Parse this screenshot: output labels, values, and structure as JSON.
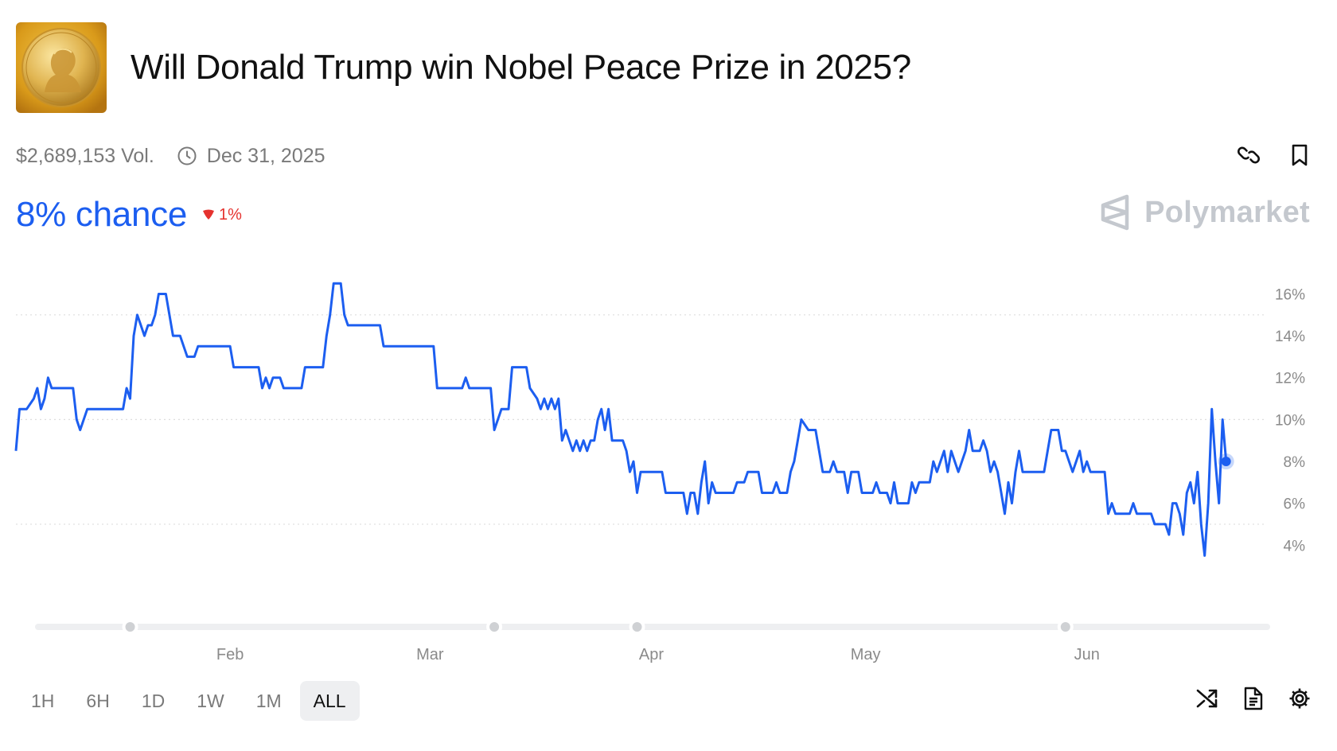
{
  "market": {
    "title": "Will Donald Trump win Nobel Peace Prize in 2025?",
    "image_icon": "nobel-medal-image",
    "volume": "$2,689,153 Vol.",
    "end_date": "Dec 31, 2025",
    "chance": "8% chance",
    "change": "1%",
    "change_direction": "down",
    "brand": "Polymarket"
  },
  "colors": {
    "line": "#1c5ef0",
    "down": "#e5322e",
    "muted": "#7a7a7a",
    "brand": "#c4c8ce"
  },
  "ranges": [
    {
      "label": "1H",
      "active": false
    },
    {
      "label": "6H",
      "active": false
    },
    {
      "label": "1D",
      "active": false
    },
    {
      "label": "1W",
      "active": false
    },
    {
      "label": "1M",
      "active": false
    },
    {
      "label": "ALL",
      "active": true
    }
  ],
  "actions": {
    "link_icon": "link-icon",
    "bookmark_icon": "bookmark-icon",
    "shuffle_icon": "shuffle-icon",
    "document_icon": "document-icon",
    "settings_icon": "gear-icon"
  },
  "chart_data": {
    "type": "line",
    "title": "",
    "xlabel": "",
    "ylabel": "",
    "ylim": [
      2.3,
      17.5
    ],
    "xlim": [
      0,
      175
    ],
    "x_ticks": [
      {
        "label": "Feb",
        "x": 30
      },
      {
        "label": "Mar",
        "x": 58
      },
      {
        "label": "Apr",
        "x": 89
      },
      {
        "label": "May",
        "x": 119
      },
      {
        "label": "Jun",
        "x": 150
      }
    ],
    "y_ticks": [
      {
        "label": "16%",
        "y": 16
      },
      {
        "label": "14%",
        "y": 14
      },
      {
        "label": "12%",
        "y": 12
      },
      {
        "label": "10%",
        "y": 10
      },
      {
        "label": "8%",
        "y": 8
      },
      {
        "label": "6%",
        "y": 6
      },
      {
        "label": "4%",
        "y": 4
      }
    ],
    "gridlines_at": [
      15,
      10,
      5
    ],
    "slider_handles_x": [
      16,
      67,
      87,
      147
    ],
    "series": [
      {
        "values": [
          [
            0,
            8.5
          ],
          [
            0.5,
            10.5
          ],
          [
            1.5,
            10.5
          ],
          [
            2.5,
            11
          ],
          [
            3,
            11.5
          ],
          [
            3.5,
            10.5
          ],
          [
            4,
            11
          ],
          [
            4.5,
            12
          ],
          [
            5,
            11.5
          ],
          [
            8,
            11.5
          ],
          [
            8.5,
            10
          ],
          [
            9,
            9.5
          ],
          [
            10,
            10.5
          ],
          [
            12,
            10.5
          ],
          [
            13,
            10.5
          ],
          [
            14,
            10.5
          ],
          [
            15,
            10.5
          ],
          [
            15.5,
            11.5
          ],
          [
            16,
            11
          ],
          [
            16.5,
            14
          ],
          [
            17,
            15
          ],
          [
            17.5,
            14.5
          ],
          [
            18,
            14
          ],
          [
            18.5,
            14.5
          ],
          [
            19,
            14.5
          ],
          [
            19.5,
            15
          ],
          [
            20,
            16
          ],
          [
            21,
            16
          ],
          [
            21.5,
            15
          ],
          [
            22,
            14
          ],
          [
            23,
            14
          ],
          [
            23.5,
            13.5
          ],
          [
            24,
            13
          ],
          [
            25,
            13
          ],
          [
            25.5,
            13.5
          ],
          [
            26,
            13.5
          ],
          [
            30,
            13.5
          ],
          [
            30.5,
            12.5
          ],
          [
            34,
            12.5
          ],
          [
            34.5,
            11.5
          ],
          [
            35,
            12
          ],
          [
            35.5,
            11.5
          ],
          [
            36,
            12
          ],
          [
            37,
            12
          ],
          [
            37.5,
            11.5
          ],
          [
            40,
            11.5
          ],
          [
            40.5,
            12.5
          ],
          [
            43,
            12.5
          ],
          [
            43.5,
            14
          ],
          [
            44,
            15
          ],
          [
            44.5,
            16.5
          ],
          [
            45.5,
            16.5
          ],
          [
            46,
            15
          ],
          [
            46.5,
            14.5
          ],
          [
            51,
            14.5
          ],
          [
            51.5,
            13.5
          ],
          [
            58.5,
            13.5
          ],
          [
            59,
            11.5
          ],
          [
            62.5,
            11.5
          ],
          [
            63,
            12
          ],
          [
            63.5,
            11.5
          ],
          [
            66.5,
            11.5
          ],
          [
            67,
            9.5
          ],
          [
            67.5,
            10
          ],
          [
            68,
            10.5
          ],
          [
            69,
            10.5
          ],
          [
            69.5,
            12.5
          ],
          [
            71.5,
            12.5
          ],
          [
            72,
            11.5
          ],
          [
            73,
            11
          ],
          [
            73.5,
            10.5
          ],
          [
            74,
            11
          ],
          [
            74.5,
            10.5
          ],
          [
            75,
            11
          ],
          [
            75.5,
            10.5
          ],
          [
            76,
            11
          ],
          [
            76.5,
            9
          ],
          [
            77,
            9.5
          ],
          [
            77.5,
            9
          ],
          [
            78,
            8.5
          ],
          [
            78.5,
            9
          ],
          [
            79,
            8.5
          ],
          [
            79.5,
            9
          ],
          [
            80,
            8.5
          ],
          [
            80.5,
            9
          ],
          [
            81,
            9
          ],
          [
            81.5,
            10
          ],
          [
            82,
            10.5
          ],
          [
            82.5,
            9.5
          ],
          [
            83,
            10.5
          ],
          [
            83.5,
            9
          ],
          [
            85,
            9
          ],
          [
            85.5,
            8.5
          ],
          [
            86,
            7.5
          ],
          [
            86.5,
            8
          ],
          [
            87,
            6.5
          ],
          [
            87.5,
            7.5
          ],
          [
            90.5,
            7.5
          ],
          [
            91,
            6.5
          ],
          [
            93.5,
            6.5
          ],
          [
            94,
            5.5
          ],
          [
            94.5,
            6.5
          ],
          [
            95,
            6.5
          ],
          [
            95.5,
            5.5
          ],
          [
            96,
            7
          ],
          [
            96.5,
            8
          ],
          [
            97,
            6
          ],
          [
            97.5,
            7
          ],
          [
            98,
            6.5
          ],
          [
            98.5,
            6.5
          ],
          [
            99,
            6.5
          ],
          [
            100.5,
            6.5
          ],
          [
            101,
            7
          ],
          [
            102,
            7
          ],
          [
            102.5,
            7.5
          ],
          [
            104,
            7.5
          ],
          [
            104.5,
            6.5
          ],
          [
            106,
            6.5
          ],
          [
            106.5,
            7
          ],
          [
            107,
            6.5
          ],
          [
            108,
            6.5
          ],
          [
            108.5,
            7.5
          ],
          [
            109,
            8
          ],
          [
            109.5,
            9
          ],
          [
            110,
            10
          ],
          [
            111,
            9.5
          ],
          [
            112,
            9.5
          ],
          [
            112.5,
            8.5
          ],
          [
            113,
            7.5
          ],
          [
            114,
            7.5
          ],
          [
            114.5,
            8
          ],
          [
            115,
            7.5
          ],
          [
            116,
            7.5
          ],
          [
            116.5,
            6.5
          ],
          [
            117,
            7.5
          ],
          [
            118,
            7.5
          ],
          [
            118.5,
            6.5
          ],
          [
            120,
            6.5
          ],
          [
            120.5,
            7
          ],
          [
            121,
            6.5
          ],
          [
            122,
            6.5
          ],
          [
            122.5,
            6
          ],
          [
            123,
            7
          ],
          [
            123.5,
            6
          ],
          [
            125,
            6
          ],
          [
            125.5,
            7
          ],
          [
            126,
            6.5
          ],
          [
            126.5,
            7
          ],
          [
            128,
            7
          ],
          [
            128.5,
            8
          ],
          [
            129,
            7.5
          ],
          [
            129.5,
            8
          ],
          [
            130,
            8.5
          ],
          [
            130.5,
            7.5
          ],
          [
            131,
            8.5
          ],
          [
            131.5,
            8
          ],
          [
            132,
            7.5
          ],
          [
            132.5,
            8
          ],
          [
            133,
            8.5
          ],
          [
            133.5,
            9.5
          ],
          [
            134,
            8.5
          ],
          [
            134.5,
            8.5
          ],
          [
            135,
            8.5
          ],
          [
            135.5,
            9
          ],
          [
            136,
            8.5
          ],
          [
            136.5,
            7.5
          ],
          [
            137,
            8
          ],
          [
            137.5,
            7.5
          ],
          [
            138,
            6.5
          ],
          [
            138.5,
            5.5
          ],
          [
            139,
            7
          ],
          [
            139.5,
            6
          ],
          [
            140,
            7.5
          ],
          [
            140.5,
            8.5
          ],
          [
            141,
            7.5
          ],
          [
            144,
            7.5
          ],
          [
            144.5,
            8.5
          ],
          [
            145,
            9.5
          ],
          [
            146,
            9.5
          ],
          [
            146.5,
            8.5
          ],
          [
            147,
            8.5
          ],
          [
            147.5,
            8
          ],
          [
            148,
            7.5
          ],
          [
            148.5,
            8
          ],
          [
            149,
            8.5
          ],
          [
            149.5,
            7.5
          ],
          [
            150,
            8
          ],
          [
            150.5,
            7.5
          ],
          [
            152.5,
            7.5
          ],
          [
            153,
            5.5
          ],
          [
            153.5,
            6
          ],
          [
            154,
            5.5
          ],
          [
            156,
            5.5
          ],
          [
            156.5,
            6
          ],
          [
            157,
            5.5
          ],
          [
            159,
            5.5
          ],
          [
            159.5,
            5
          ],
          [
            161,
            5
          ],
          [
            161.5,
            4.5
          ],
          [
            162,
            6
          ],
          [
            162.5,
            6
          ],
          [
            163,
            5.5
          ],
          [
            163.5,
            4.5
          ],
          [
            164,
            6.5
          ],
          [
            164.5,
            7
          ],
          [
            165,
            6
          ],
          [
            165.5,
            7.5
          ],
          [
            166,
            5
          ],
          [
            166.5,
            3.5
          ],
          [
            167,
            6
          ],
          [
            167.5,
            10.5
          ],
          [
            168,
            8
          ],
          [
            168.5,
            6
          ],
          [
            169,
            10
          ],
          [
            169.5,
            8
          ]
        ]
      }
    ],
    "current_point": {
      "x": 169.5,
      "y": 8
    }
  }
}
